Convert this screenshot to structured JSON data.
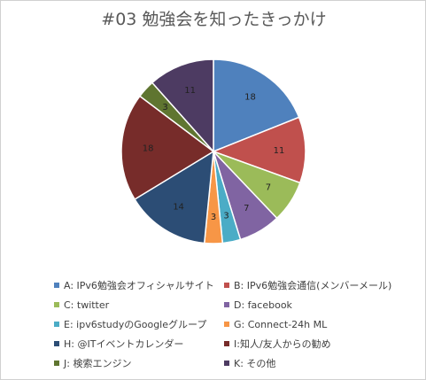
{
  "colors": {
    "background": "#ffffff",
    "title": "#595959"
  },
  "chart_data": {
    "type": "pie",
    "title": "#03 勉強会を知ったきっかけ",
    "legend_placement": "bottom",
    "slices": [
      {
        "label": "A: IPv6勉強会オフィシャルサイト",
        "value": 18,
        "display": "18",
        "color": "#4f81bd"
      },
      {
        "label": "B: IPv6勉強会通信(メンバーメール)",
        "value": 11,
        "display": "11",
        "color": "#c0504d"
      },
      {
        "label": "C: twitter",
        "value": 7,
        "display": "7",
        "color": "#9bbb59"
      },
      {
        "label": "D: facebook",
        "value": 7,
        "display": "7",
        "color": "#8064a2"
      },
      {
        "label": "E: ipv6studyのGoogleグループ",
        "value": 3,
        "display": "3",
        "color": "#4bacc6"
      },
      {
        "label": "G: Connect-24h ML",
        "value": 3,
        "display": "3",
        "color": "#f79646"
      },
      {
        "label": "H: @ITイベントカレンダー",
        "value": 14,
        "display": "14",
        "color": "#2c4d75"
      },
      {
        "label": "I:知人/友人からの勧め",
        "value": 18,
        "display": "18",
        "color": "#772c2a"
      },
      {
        "label": "J: 検索エンジン",
        "value": 3,
        "display": "3",
        "color": "#5f7530"
      },
      {
        "label": "K: その他",
        "value": 11,
        "display": "11",
        "color": "#4d3b62"
      }
    ]
  }
}
